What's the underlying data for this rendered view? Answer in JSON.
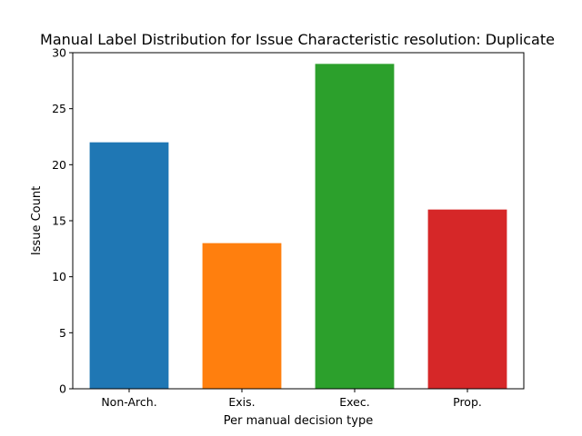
{
  "chart_data": {
    "type": "bar",
    "title": "Manual Label Distribution for Issue Characteristic resolution: Duplicate",
    "xlabel": "Per manual decision type",
    "ylabel": "Issue Count",
    "categories": [
      "Non-Arch.",
      "Exis.",
      "Exec.",
      "Prop."
    ],
    "values": [
      22,
      13,
      29,
      16
    ],
    "colors": [
      "#1f77b4",
      "#ff7f0e",
      "#2ca02c",
      "#d62728"
    ],
    "ylim": [
      0,
      30
    ],
    "yticks": [
      "0",
      "5",
      "10",
      "15",
      "20",
      "25",
      "30"
    ],
    "grid": false,
    "legend": "none"
  }
}
